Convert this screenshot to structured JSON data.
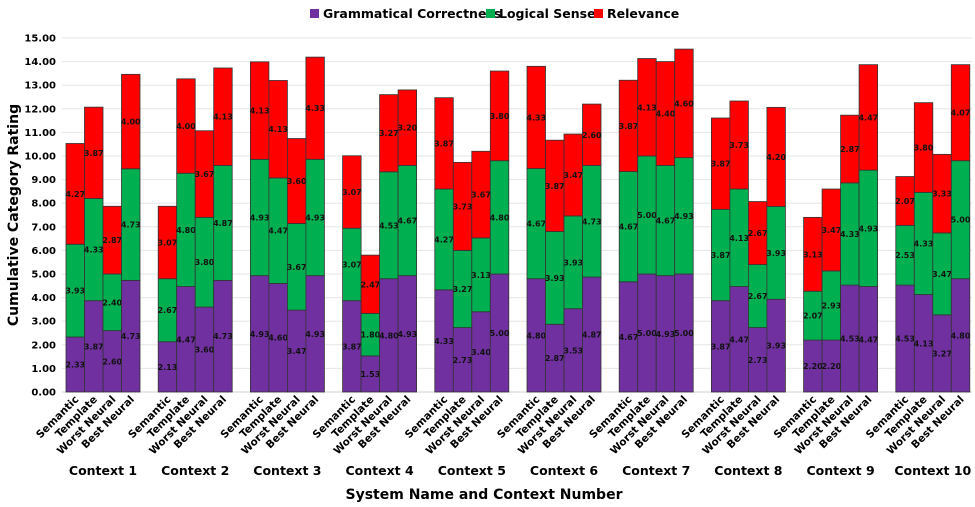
{
  "chart_data": {
    "type": "bar",
    "stacked": true,
    "xlabel": "System Name and Context Number",
    "ylabel": "Cumulative  Category Rating",
    "ylim": [
      0,
      15
    ],
    "yticks": [
      "0.00",
      "1.00",
      "2.00",
      "3.00",
      "4.00",
      "5.00",
      "6.00",
      "7.00",
      "8.00",
      "9.00",
      "10.00",
      "11.00",
      "12.00",
      "13.00",
      "14.00",
      "15.00"
    ],
    "grid": true,
    "legend_position": "top",
    "systems": [
      "Semantic",
      "Template",
      "Worst Neural",
      "Best Neural"
    ],
    "contexts": [
      "Context 1",
      "Context 2",
      "Context 3",
      "Context 4",
      "Context 5",
      "Context 6",
      "Context 7",
      "Context 8",
      "Context 9",
      "Context 10"
    ],
    "series": [
      {
        "name": "Grammatical Correctness",
        "color": "#7030a0",
        "values": [
          [
            2.33,
            3.87,
            2.6,
            4.73
          ],
          [
            2.13,
            4.47,
            3.6,
            4.73
          ],
          [
            4.93,
            4.6,
            3.47,
            4.93
          ],
          [
            3.87,
            1.53,
            4.8,
            4.93
          ],
          [
            4.33,
            2.73,
            3.4,
            5.0
          ],
          [
            4.8,
            2.87,
            3.53,
            4.87
          ],
          [
            4.67,
            5.0,
            4.93,
            5.0
          ],
          [
            3.87,
            4.47,
            2.73,
            3.93
          ],
          [
            2.2,
            2.2,
            4.53,
            4.47
          ],
          [
            4.53,
            4.13,
            3.27,
            4.8
          ]
        ]
      },
      {
        "name": "Logical Sense",
        "color": "#00b050",
        "values": [
          [
            3.93,
            4.33,
            2.4,
            4.73
          ],
          [
            2.67,
            4.8,
            3.8,
            4.87
          ],
          [
            4.93,
            4.47,
            3.67,
            4.93
          ],
          [
            3.07,
            1.8,
            4.53,
            4.67
          ],
          [
            4.27,
            3.27,
            3.13,
            4.8
          ],
          [
            4.67,
            3.93,
            3.93,
            4.73
          ],
          [
            4.67,
            5.0,
            4.67,
            4.93
          ],
          [
            3.87,
            4.13,
            2.67,
            3.93
          ],
          [
            2.07,
            2.93,
            4.33,
            4.93
          ],
          [
            2.53,
            4.33,
            3.47,
            5.0
          ]
        ]
      },
      {
        "name": "Relevance",
        "color": "#ff0000",
        "values": [
          [
            4.27,
            3.87,
            2.87,
            4.0
          ],
          [
            3.07,
            4.0,
            3.67,
            4.13
          ],
          [
            4.13,
            4.13,
            3.6,
            4.33
          ],
          [
            3.07,
            2.47,
            3.27,
            3.2
          ],
          [
            3.87,
            3.73,
            3.67,
            3.8
          ],
          [
            4.33,
            3.87,
            3.47,
            2.6
          ],
          [
            3.87,
            4.13,
            4.4,
            4.6
          ],
          [
            3.87,
            3.73,
            2.67,
            4.2
          ],
          [
            3.13,
            3.47,
            2.87,
            4.47
          ],
          [
            2.07,
            3.8,
            3.33,
            4.07
          ]
        ]
      }
    ]
  }
}
